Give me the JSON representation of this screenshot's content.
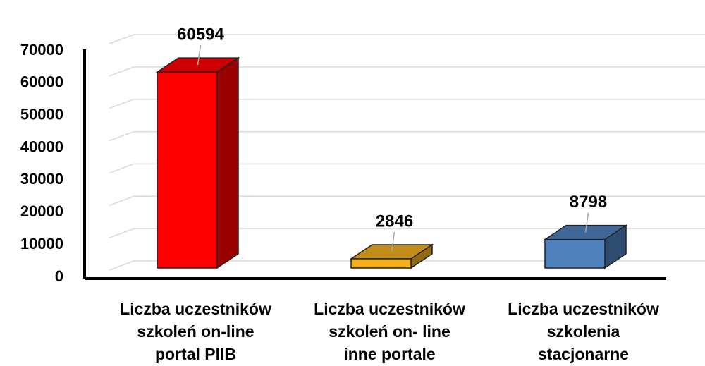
{
  "chart_data": {
    "type": "bar3d",
    "categories": [
      "Liczba uczestników\nszkoleń  on-line\nportal PIIB",
      "Liczba uczestników\nszkoleń  on- line\ninne portale",
      "Liczba uczestników\nszkolenia\nstacjonarne"
    ],
    "values": [
      60594,
      2846,
      8798
    ],
    "colors": [
      "#ff0000",
      "#f2b01e",
      "#4f81bd"
    ],
    "ylim": [
      0,
      70000
    ],
    "yticks": [
      0,
      10000,
      20000,
      30000,
      40000,
      50000,
      60000,
      70000
    ],
    "grid": true
  }
}
